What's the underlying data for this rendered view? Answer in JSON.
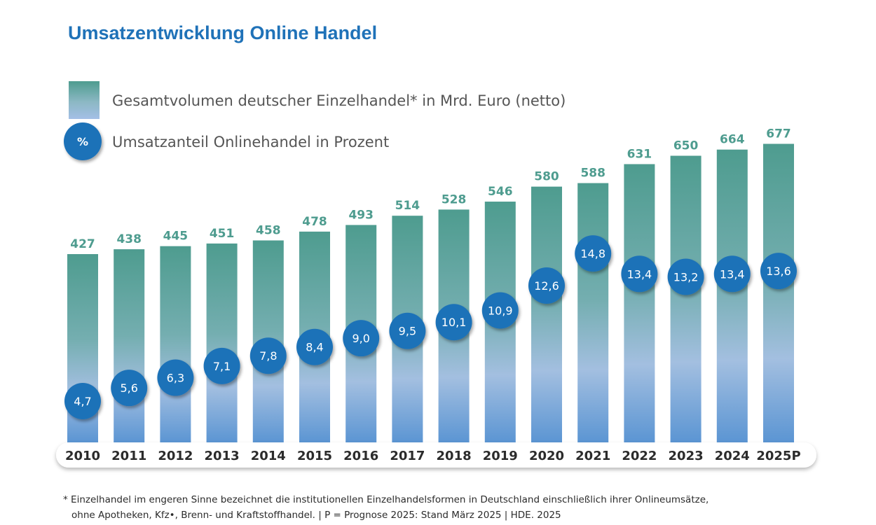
{
  "title": "Umsatzentwicklung Online Handel",
  "colors": {
    "title": "#1f72b8",
    "bar_top": "#4e9c8f",
    "bar_mid": "#86b7c0",
    "bar_bottom": "#6f9fd6",
    "circle": "#1f72b8",
    "bar_value_text": "#4e9c8f",
    "legend_text": "#555555",
    "axis_text": "#2b2b2b"
  },
  "legend": {
    "bars_label": "Gesamtvolumen deutscher Einzelhandel* in Mrd. Euro (netto)",
    "circles_label": "Umsatzanteil Onlinehandel in Prozent",
    "circle_symbol": "%"
  },
  "chart_data": {
    "type": "bar",
    "categories": [
      "2010",
      "2011",
      "2012",
      "2013",
      "2014",
      "2015",
      "2016",
      "2017",
      "2018",
      "2019",
      "2020",
      "2021",
      "2022",
      "2023",
      "2024",
      "2025P"
    ],
    "series": [
      {
        "name": "Gesamtvolumen deutscher Einzelhandel* in Mrd. Euro (netto)",
        "type": "bar",
        "values": [
          427,
          438,
          445,
          451,
          458,
          478,
          493,
          514,
          528,
          546,
          580,
          588,
          631,
          650,
          664,
          677
        ]
      },
      {
        "name": "Umsatzanteil Onlinehandel in Prozent",
        "type": "scatter",
        "values": [
          4.7,
          5.6,
          6.3,
          7.1,
          7.8,
          8.4,
          9.0,
          9.5,
          10.1,
          10.9,
          12.6,
          14.8,
          13.4,
          13.2,
          13.4,
          13.6
        ],
        "labels": [
          "4,7",
          "5,6",
          "6,3",
          "7,1",
          "7,8",
          "8,4",
          "9,0",
          "9,5",
          "10,1",
          "10,9",
          "12,6",
          "14,8",
          "13,4",
          "13,2",
          "13,4",
          "13,6"
        ]
      }
    ],
    "legend_position": "top-left",
    "grid": false
  },
  "footnote": {
    "line1": "* Einzelhandel im engeren Sinne bezeichnet die institutionellen Einzelhandelsformen in Deutschland einschließlich ihrer Onlineumsätze,",
    "line2": "ohne Apotheken, Kfz•, Brenn- und Kraftstoffhandel. | P = Prognose 2025: Stand März 2025 | HDE. 2025"
  }
}
